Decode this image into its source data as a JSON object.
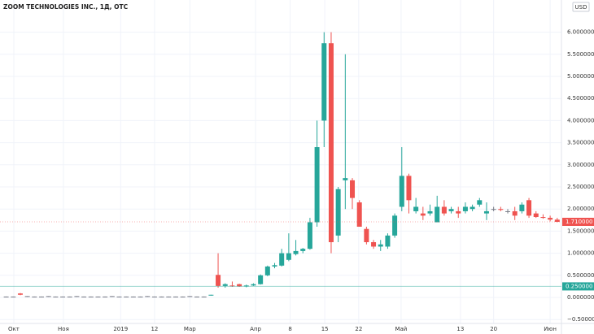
{
  "chart_data": {
    "type": "candlestick",
    "title": "ZOOM TECHNOLOGIES INC., 1Д, OTC",
    "currency_label": "USD",
    "up_color": "#26a69a",
    "down_color": "#ef5350",
    "open": [
      0.02,
      0.02,
      0.09,
      0.03,
      0.02,
      0.02,
      0.03,
      0.02,
      0.02,
      0.02,
      0.03,
      0.02,
      0.02,
      0.02,
      0.02,
      0.03,
      0.02,
      0.02,
      0.02,
      0.02,
      0.03,
      0.02,
      0.02,
      0.02,
      0.02,
      0.02,
      0.03,
      0.02,
      0.02,
      0.05,
      0.51,
      0.26,
      0.27,
      0.3,
      0.25,
      0.27,
      0.3,
      0.5,
      0.7,
      0.72,
      0.85,
      0.98,
      1.05,
      1.1,
      1.7,
      4.0,
      5.75,
      1.4,
      2.65,
      2.65,
      2.15,
      1.55,
      1.25,
      1.15,
      1.15,
      1.4,
      2.05,
      2.75,
      1.95,
      1.9,
      1.9,
      1.7,
      2.05,
      1.95,
      1.95,
      1.95,
      2.0,
      2.1,
      1.9,
      2.0,
      2.0,
      1.95,
      1.95,
      1.95,
      2.2,
      1.9,
      1.82,
      1.8,
      1.76
    ],
    "high": [
      0.02,
      0.02,
      0.1,
      0.03,
      0.02,
      0.02,
      0.03,
      0.02,
      0.02,
      0.02,
      0.03,
      0.02,
      0.02,
      0.02,
      0.02,
      0.03,
      0.02,
      0.02,
      0.02,
      0.02,
      0.03,
      0.02,
      0.02,
      0.02,
      0.02,
      0.02,
      0.03,
      0.02,
      0.02,
      0.06,
      1.0,
      0.32,
      0.36,
      0.31,
      0.29,
      0.32,
      0.52,
      0.72,
      0.78,
      1.1,
      1.45,
      1.3,
      1.12,
      1.8,
      4.0,
      6.0,
      6.0,
      2.5,
      5.5,
      2.7,
      2.2,
      1.6,
      1.3,
      1.3,
      1.45,
      1.9,
      3.4,
      2.8,
      2.25,
      2.05,
      2.1,
      2.3,
      2.2,
      2.05,
      2.05,
      2.15,
      2.1,
      2.25,
      2.15,
      2.05,
      2.05,
      2.0,
      2.05,
      2.15,
      2.25,
      1.95,
      1.88,
      1.85,
      1.8
    ],
    "low": [
      0.02,
      0.02,
      0.05,
      0.03,
      0.02,
      0.02,
      0.03,
      0.02,
      0.02,
      0.02,
      0.03,
      0.02,
      0.02,
      0.02,
      0.02,
      0.03,
      0.02,
      0.02,
      0.02,
      0.02,
      0.03,
      0.02,
      0.02,
      0.02,
      0.02,
      0.02,
      0.03,
      0.02,
      0.02,
      0.05,
      0.22,
      0.22,
      0.24,
      0.24,
      0.23,
      0.26,
      0.29,
      0.48,
      0.66,
      0.7,
      0.82,
      0.95,
      1.0,
      1.08,
      1.6,
      3.4,
      1.0,
      1.25,
      2.0,
      2.0,
      1.6,
      1.2,
      1.1,
      1.05,
      1.1,
      1.35,
      1.95,
      1.9,
      1.9,
      1.75,
      1.85,
      1.7,
      1.85,
      1.9,
      1.8,
      1.9,
      1.95,
      2.05,
      1.75,
      1.95,
      1.95,
      1.9,
      1.75,
      1.9,
      1.8,
      1.8,
      1.78,
      1.72,
      1.7
    ],
    "close": [
      0.02,
      0.02,
      0.06,
      0.03,
      0.02,
      0.02,
      0.03,
      0.02,
      0.02,
      0.02,
      0.03,
      0.02,
      0.02,
      0.02,
      0.02,
      0.03,
      0.02,
      0.02,
      0.02,
      0.02,
      0.03,
      0.02,
      0.02,
      0.02,
      0.02,
      0.02,
      0.03,
      0.02,
      0.02,
      0.06,
      0.26,
      0.3,
      0.26,
      0.25,
      0.27,
      0.3,
      0.5,
      0.7,
      0.73,
      1.0,
      1.0,
      1.05,
      1.1,
      1.7,
      3.4,
      5.75,
      1.25,
      2.45,
      2.7,
      2.25,
      1.6,
      1.25,
      1.15,
      1.2,
      1.4,
      1.85,
      2.75,
      2.2,
      2.05,
      1.85,
      1.95,
      2.05,
      1.9,
      2.0,
      1.9,
      2.05,
      2.05,
      2.2,
      1.95,
      2.0,
      1.98,
      1.95,
      1.85,
      2.1,
      1.85,
      1.82,
      1.8,
      1.76,
      1.71
    ],
    "ylim": [
      -0.588,
      6.728
    ],
    "yticks": [
      {
        "value": 6,
        "label": "6.000000"
      },
      {
        "value": 5.5,
        "label": "5.500000"
      },
      {
        "value": 5,
        "label": "5.000000"
      },
      {
        "value": 4.5,
        "label": "4.500000"
      },
      {
        "value": 4,
        "label": "4.000000"
      },
      {
        "value": 3.5,
        "label": "3.500000"
      },
      {
        "value": 3,
        "label": "3.000000"
      },
      {
        "value": 2.5,
        "label": "2.500000"
      },
      {
        "value": 2,
        "label": "2.000000"
      },
      {
        "value": 1.5,
        "label": "1.500000"
      },
      {
        "value": 1,
        "label": "1.000000"
      },
      {
        "value": 0.5,
        "label": "0.500000"
      },
      {
        "value": 0,
        "label": "0.000000"
      },
      {
        "value": -0.5,
        "label": "−0.500000"
      }
    ],
    "xlim": [
      -0.875,
      78.6
    ],
    "xticks": [
      {
        "value": 1.08,
        "label": "Окт"
      },
      {
        "value": 8.1,
        "label": "Ноя"
      },
      {
        "value": 16.2,
        "label": "2019"
      },
      {
        "value": 21.0,
        "label": "12"
      },
      {
        "value": 26.0,
        "label": "Мар"
      },
      {
        "value": 35.3,
        "label": "Апр"
      },
      {
        "value": 40.2,
        "label": "8"
      },
      {
        "value": 45.1,
        "label": "15"
      },
      {
        "value": 49.9,
        "label": "22"
      },
      {
        "value": 55.9,
        "label": "Май"
      },
      {
        "value": 64.3,
        "label": "13"
      },
      {
        "value": 69.0,
        "label": "20"
      },
      {
        "value": 77.0,
        "label": "Июн"
      }
    ],
    "grid": true,
    "price_lines": [
      {
        "value": 0.25,
        "label": "0.250000",
        "color": "#26a69a"
      },
      {
        "value": 1.71,
        "label": "1.710000",
        "color": "#ef5350"
      }
    ]
  }
}
